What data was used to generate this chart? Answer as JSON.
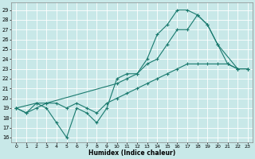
{
  "xlabel": "Humidex (Indice chaleur)",
  "bg_color": "#c8e8e8",
  "grid_color": "#b0d8d8",
  "line_color": "#1a7a6e",
  "xlim": [
    -0.5,
    23.5
  ],
  "ylim": [
    15.5,
    29.8
  ],
  "xticks": [
    0,
    1,
    2,
    3,
    4,
    5,
    6,
    7,
    8,
    9,
    10,
    11,
    12,
    13,
    14,
    15,
    16,
    17,
    18,
    19,
    20,
    21,
    22,
    23
  ],
  "yticks": [
    16,
    17,
    18,
    19,
    20,
    21,
    22,
    23,
    24,
    25,
    26,
    27,
    28,
    29
  ],
  "line1_x": [
    0,
    1,
    2,
    3,
    4,
    5,
    6,
    7,
    8,
    9,
    10,
    11,
    12,
    13,
    14,
    15,
    16,
    17,
    18,
    19,
    20,
    21,
    22,
    23
  ],
  "line1_y": [
    19.0,
    18.5,
    19.5,
    19.0,
    17.5,
    16.0,
    19.0,
    18.5,
    17.5,
    19.0,
    22.0,
    22.5,
    22.5,
    24.0,
    26.5,
    27.5,
    29.0,
    29.0,
    28.5,
    27.5,
    25.5,
    23.5,
    23.0,
    23.0
  ],
  "line2_x": [
    0,
    2,
    3,
    10,
    11,
    12,
    13,
    14,
    15,
    16,
    17,
    18,
    19,
    20,
    22,
    23
  ],
  "line2_y": [
    19.0,
    19.5,
    19.5,
    21.5,
    22.0,
    22.5,
    23.5,
    24.0,
    25.5,
    27.0,
    27.0,
    28.5,
    27.5,
    25.5,
    23.0,
    23.0
  ],
  "line3_x": [
    0,
    1,
    2,
    3,
    4,
    5,
    6,
    7,
    8,
    9,
    10,
    11,
    12,
    13,
    14,
    15,
    16,
    17,
    18,
    19,
    20,
    21,
    22,
    23
  ],
  "line3_y": [
    19.0,
    18.5,
    19.0,
    19.5,
    19.5,
    19.0,
    19.5,
    19.0,
    18.5,
    19.5,
    20.0,
    20.5,
    21.0,
    21.5,
    22.0,
    22.5,
    23.0,
    23.5,
    23.5,
    23.5,
    23.5,
    23.5,
    23.0,
    23.0
  ]
}
